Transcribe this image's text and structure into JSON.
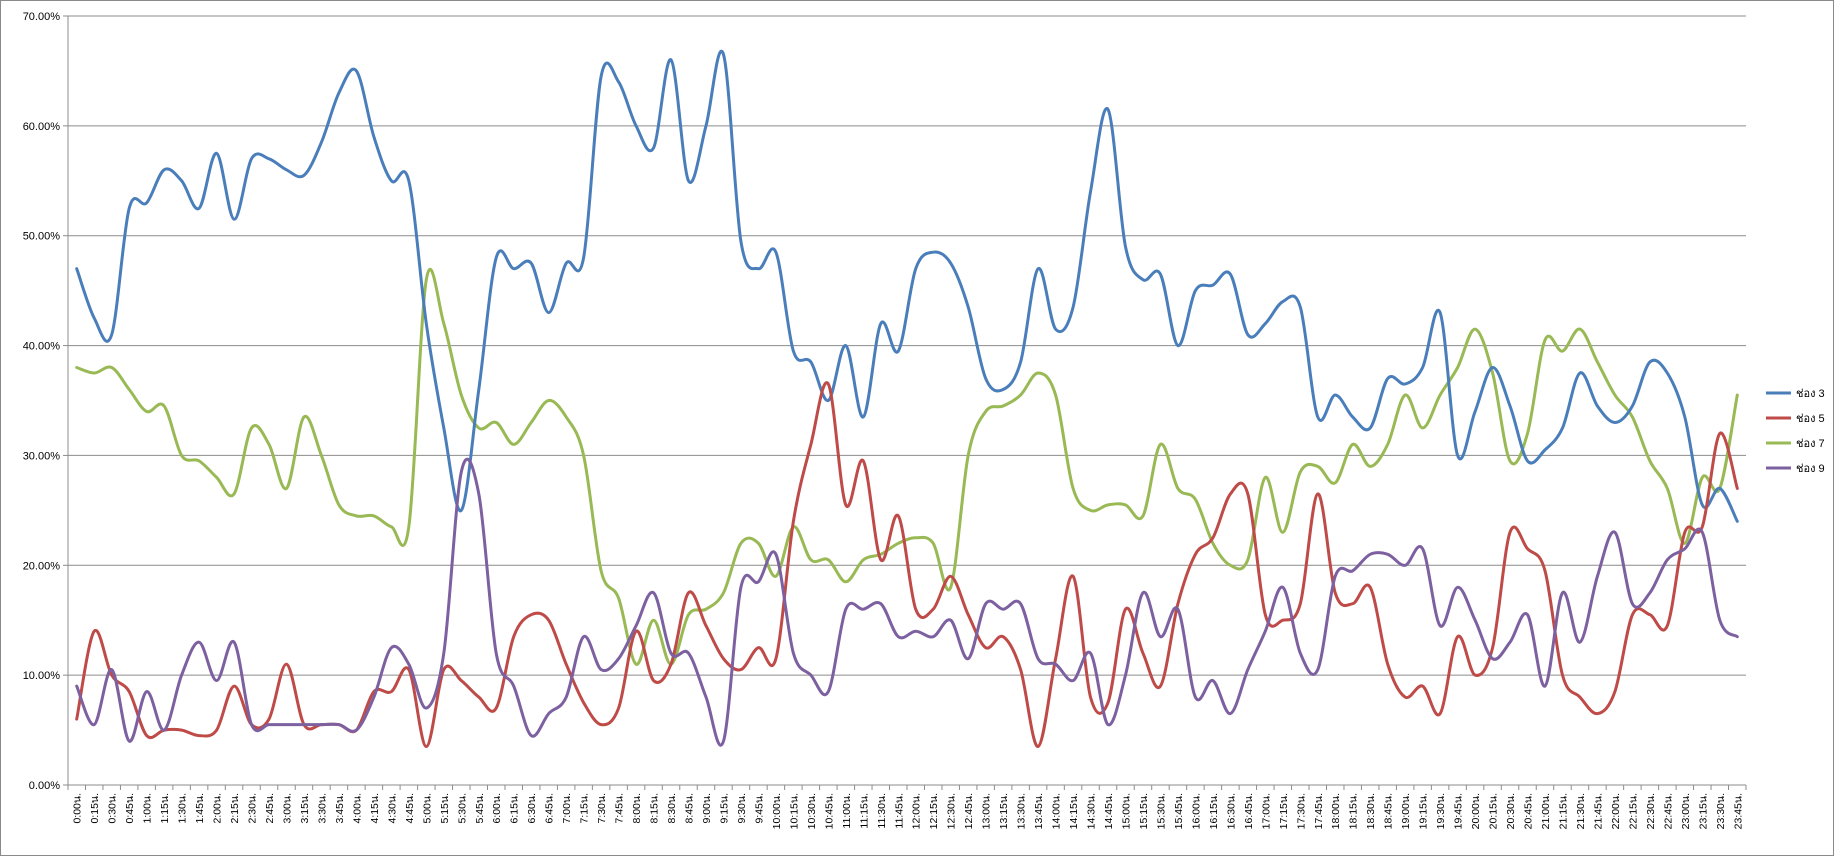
{
  "chart_data": {
    "type": "line",
    "title": "",
    "xlabel": "",
    "ylabel": "",
    "ylim": [
      0,
      70
    ],
    "yticks": [
      "0.00%",
      "10.00%",
      "20.00%",
      "30.00%",
      "40.00%",
      "50.00%",
      "60.00%",
      "70.00%"
    ],
    "grid": true,
    "legend_position": "right",
    "categories": [
      "0:00น.",
      "0:15น.",
      "0:30น.",
      "0:45น.",
      "1:00น.",
      "1:15น.",
      "1:30น.",
      "1:45น.",
      "2:00น.",
      "2:15น.",
      "2:30น.",
      "2:45น.",
      "3:00น.",
      "3:15น.",
      "3:30น.",
      "3:45น.",
      "4:00น.",
      "4:15น.",
      "4:30น.",
      "4:45น.",
      "5:00น.",
      "5:15น.",
      "5:30น.",
      "5:45น.",
      "6:00น.",
      "6:15น.",
      "6:30น.",
      "6:45น.",
      "7:00น.",
      "7:15น.",
      "7:30น.",
      "7:45น.",
      "8:00น.",
      "8:15น.",
      "8:30น.",
      "8:45น.",
      "9:00น.",
      "9:15น.",
      "9:30น.",
      "9:45น.",
      "10:00น.",
      "10:15น.",
      "10:30น.",
      "10:45น.",
      "11:00น.",
      "11:15น.",
      "11:30น.",
      "11:45น.",
      "12:00น.",
      "12:15น.",
      "12:30น.",
      "12:45น.",
      "13:00น.",
      "13:15น.",
      "13:30น.",
      "13:45น.",
      "14:00น.",
      "14:15น.",
      "14:30น.",
      "14:45น.",
      "15:00น.",
      "15:15น.",
      "15:30น.",
      "15:45น.",
      "16:00น.",
      "16:15น.",
      "16:30น.",
      "16:45น.",
      "17:00น.",
      "17:15น.",
      "17:30น.",
      "17:45น.",
      "18:00น.",
      "18:15น.",
      "18:30น.",
      "18:45น.",
      "19:00น.",
      "19:15น.",
      "19:30น.",
      "19:45น.",
      "20:00น.",
      "20:15น.",
      "20:30น.",
      "20:45น.",
      "21:00น.",
      "21:15น.",
      "21:30น.",
      "21:45น.",
      "22:00น.",
      "22:15น.",
      "22:30น.",
      "22:45น.",
      "23:00น.",
      "23:15น.",
      "23:30น.",
      "23:45น."
    ],
    "series": [
      {
        "name": "ช่อง 3",
        "color": "#4a7ebb",
        "values": [
          47,
          42.5,
          41,
          52.5,
          53,
          56,
          55,
          52.5,
          57.5,
          51.5,
          57,
          57,
          56,
          55.5,
          58.5,
          63,
          65,
          59,
          55,
          55,
          42,
          32.5,
          25,
          36,
          48,
          47,
          47.5,
          43,
          47.5,
          48,
          64.5,
          64,
          60,
          58,
          66,
          55,
          60,
          66.5,
          49.5,
          47,
          48.5,
          39.5,
          38.5,
          35,
          40,
          33.5,
          42,
          39.5,
          47,
          48.5,
          47.5,
          43.5,
          37,
          36,
          38.5,
          47,
          41.5,
          43.5,
          54,
          61.5,
          49,
          46,
          46.5,
          40,
          45,
          45.5,
          46.5,
          41,
          42,
          44,
          43.5,
          33.5,
          35.5,
          33.5,
          32.5,
          37,
          36.5,
          38,
          43,
          30,
          34,
          38,
          34.5,
          29.5,
          30.5,
          32.5,
          37.5,
          34.5,
          33,
          34.5,
          38.5,
          37.5,
          33.5,
          25.5,
          27,
          24
        ]
      },
      {
        "name": "ช่อง 5",
        "color": "#be4b48",
        "values": [
          6,
          14,
          10,
          8.5,
          4.5,
          5,
          5,
          4.5,
          5,
          9,
          5.5,
          6,
          11,
          5.5,
          5.5,
          5.5,
          5,
          8.5,
          8.5,
          10.5,
          3.5,
          10.5,
          9.5,
          8,
          7,
          13.5,
          15.5,
          15,
          11,
          7.5,
          5.5,
          7,
          14,
          9.5,
          11,
          17.5,
          14.5,
          11.5,
          10.5,
          12.5,
          11.5,
          24,
          31,
          36.5,
          25.5,
          29.5,
          20.5,
          24.5,
          16,
          16,
          19,
          15.5,
          12.5,
          13.5,
          10.5,
          3.5,
          11.5,
          19,
          8,
          7.5,
          16,
          12,
          9,
          16.5,
          21,
          22.5,
          26.5,
          26.5,
          15.5,
          15,
          16.5,
          26.5,
          17.5,
          16.5,
          18,
          11,
          8,
          9,
          6.5,
          13.5,
          10,
          12.5,
          23,
          21.5,
          19.5,
          10,
          8,
          6.5,
          8.5,
          15.5,
          15.5,
          14.5,
          23,
          23.5,
          32,
          27
        ]
      },
      {
        "name": "ช่อง 7",
        "color": "#98b954",
        "values": [
          38,
          37.5,
          38,
          36,
          34,
          34.5,
          30,
          29.5,
          28,
          26.5,
          32.5,
          31,
          27,
          33.5,
          30,
          25.5,
          24.5,
          24.5,
          23.5,
          23.5,
          46,
          42,
          35.5,
          32.5,
          33,
          31,
          33,
          35,
          33.5,
          30,
          19.5,
          17,
          11,
          15,
          11,
          15.5,
          16,
          17.5,
          22,
          22,
          19,
          23.5,
          20.5,
          20.5,
          18.5,
          20.5,
          21,
          22,
          22.5,
          22,
          18,
          30,
          34,
          34.5,
          35.5,
          37.5,
          35.5,
          27,
          25,
          25.5,
          25.5,
          24.5,
          31,
          27,
          26,
          22,
          20,
          20.5,
          28,
          23,
          28.5,
          29,
          27.5,
          31,
          29,
          31,
          35.5,
          32.5,
          35.5,
          38,
          41.5,
          37.5,
          29.5,
          32,
          40.5,
          39.5,
          41.5,
          38.5,
          35.5,
          33.5,
          29.5,
          27,
          22,
          28,
          27,
          35.5
        ]
      },
      {
        "name": "ช่อง 9",
        "color": "#7d60a0",
        "values": [
          9,
          5.5,
          10.5,
          4,
          8.5,
          5,
          10,
          13,
          9.5,
          13,
          5.5,
          5.5,
          5.5,
          5.5,
          5.5,
          5.5,
          5,
          8,
          12.5,
          11,
          7,
          12,
          28.5,
          26.5,
          12,
          9,
          4.5,
          6.5,
          8,
          13.5,
          10.5,
          11.5,
          14.5,
          17.5,
          12,
          12,
          8,
          4,
          18,
          18.5,
          21,
          12,
          10,
          8.5,
          16,
          16,
          16.5,
          13.5,
          14,
          13.5,
          15,
          11.5,
          16.5,
          16,
          16.5,
          11.5,
          11,
          9.5,
          12,
          5.5,
          10,
          17.5,
          13.5,
          16,
          8,
          9.5,
          6.5,
          10.5,
          14,
          18,
          12,
          10.5,
          19,
          19.5,
          21,
          21,
          20,
          21.5,
          14.5,
          18,
          15,
          11.5,
          13,
          15.5,
          9,
          17.5,
          13,
          19,
          23,
          16.5,
          17.5,
          20.5,
          21.5,
          23,
          15,
          13.5
        ]
      }
    ]
  }
}
